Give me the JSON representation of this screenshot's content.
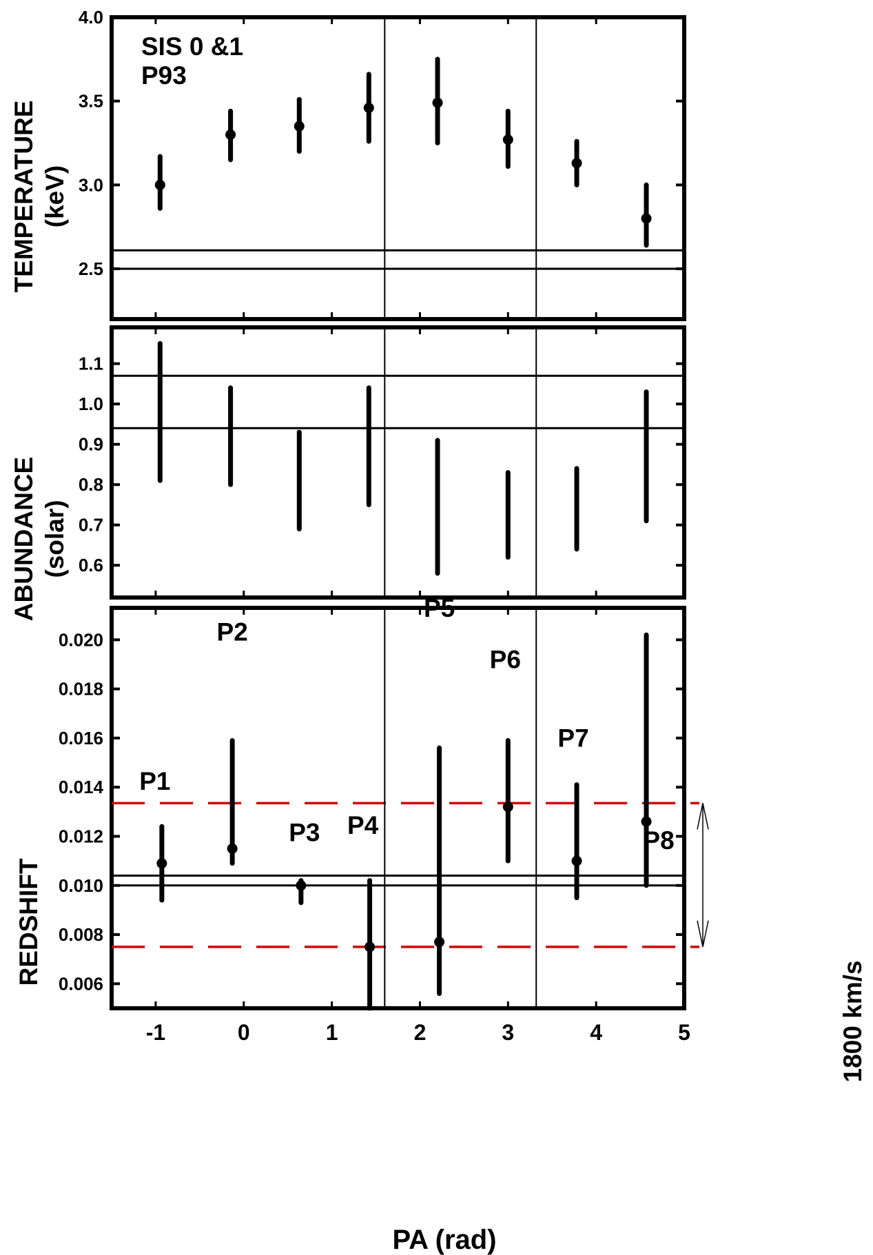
{
  "chart_data": [
    {
      "type": "scatter",
      "panel": "temperature",
      "ylabel": [
        "TEMPERATURE",
        "(keV)"
      ],
      "annotation": [
        "SIS 0 &1",
        "P93"
      ],
      "ylim": [
        2.2,
        4.0
      ],
      "yticks": [
        2.5,
        3.0,
        3.5,
        4.0
      ],
      "ytick_labels": [
        "2.5",
        "3.0",
        "3.5",
        "4.0"
      ],
      "show_points": true,
      "points": [
        {
          "x": -0.95,
          "y": 3.0,
          "ylo": 2.86,
          "yhi": 3.17
        },
        {
          "x": -0.15,
          "y": 3.3,
          "ylo": 3.15,
          "yhi": 3.44
        },
        {
          "x": 0.63,
          "y": 3.35,
          "ylo": 3.2,
          "yhi": 3.51
        },
        {
          "x": 1.42,
          "y": 3.46,
          "ylo": 3.26,
          "yhi": 3.66
        },
        {
          "x": 2.2,
          "y": 3.49,
          "ylo": 3.25,
          "yhi": 3.75
        },
        {
          "x": 3.0,
          "y": 3.27,
          "ylo": 3.11,
          "yhi": 3.44
        },
        {
          "x": 3.78,
          "y": 3.13,
          "ylo": 3.0,
          "yhi": 3.26
        },
        {
          "x": 4.57,
          "y": 2.8,
          "ylo": 2.64,
          "yhi": 3.0
        }
      ],
      "hlines": [
        2.5,
        2.61
      ]
    },
    {
      "type": "scatter",
      "panel": "abundance",
      "ylabel": [
        "ABUNDANCE",
        "(solar)"
      ],
      "ylim": [
        0.52,
        1.19
      ],
      "yticks": [
        0.6,
        0.7,
        0.8,
        0.9,
        1.0,
        1.1
      ],
      "ytick_labels": [
        "0.6",
        "0.7",
        "0.8",
        "0.9",
        "1.0",
        "1.1"
      ],
      "show_points": false,
      "points": [
        {
          "x": -0.95,
          "y": 0.98,
          "ylo": 0.81,
          "yhi": 1.15
        },
        {
          "x": -0.15,
          "y": 0.91,
          "ylo": 0.8,
          "yhi": 1.04
        },
        {
          "x": 0.63,
          "y": 0.81,
          "ylo": 0.69,
          "yhi": 0.93
        },
        {
          "x": 1.42,
          "y": 0.87,
          "ylo": 0.75,
          "yhi": 1.04
        },
        {
          "x": 2.2,
          "y": 0.75,
          "ylo": 0.58,
          "yhi": 0.91
        },
        {
          "x": 3.0,
          "y": 0.71,
          "ylo": 0.62,
          "yhi": 0.83
        },
        {
          "x": 3.78,
          "y": 0.74,
          "ylo": 0.64,
          "yhi": 0.84
        },
        {
          "x": 4.57,
          "y": 0.85,
          "ylo": 0.71,
          "yhi": 1.03
        }
      ],
      "hlines": [
        0.94,
        1.07
      ]
    },
    {
      "type": "scatter",
      "panel": "redshift",
      "ylabel": [
        "REDSHIFT"
      ],
      "xlabel": "PA (rad)",
      "ylim": [
        0.005,
        0.0213
      ],
      "xlim": [
        -1.5,
        5.0
      ],
      "xticks": [
        -1,
        0,
        1,
        2,
        3,
        4,
        5
      ],
      "xtick_labels": [
        "-1",
        "0",
        "1",
        "2",
        "3",
        "4",
        "5"
      ],
      "yticks": [
        0.006,
        0.008,
        0.01,
        0.012,
        0.014,
        0.016,
        0.018,
        0.02
      ],
      "ytick_labels": [
        "0.006",
        "0.008",
        "0.010",
        "0.012",
        "0.014",
        "0.016",
        "0.018",
        "0.020"
      ],
      "show_points": true,
      "points": [
        {
          "x": -0.93,
          "y": 0.0109,
          "ylo": 0.0094,
          "yhi": 0.0124,
          "label": "P1"
        },
        {
          "x": -0.13,
          "y": 0.0115,
          "ylo": 0.0109,
          "yhi": 0.0159,
          "label": "P2"
        },
        {
          "x": 0.65,
          "y": 0.01,
          "ylo": 0.0093,
          "yhi": 0.0102,
          "label": "P3"
        },
        {
          "x": 1.43,
          "y": 0.0075,
          "ylo": 0.005,
          "yhi": 0.0102,
          "label": "P4"
        },
        {
          "x": 2.22,
          "y": 0.0077,
          "ylo": 0.0056,
          "yhi": 0.0156,
          "label": "P5"
        },
        {
          "x": 3.0,
          "y": 0.0132,
          "ylo": 0.011,
          "yhi": 0.0159,
          "label": "P6"
        },
        {
          "x": 3.78,
          "y": 0.011,
          "ylo": 0.0095,
          "yhi": 0.0141,
          "label": "P7"
        },
        {
          "x": 4.57,
          "y": 0.0126,
          "ylo": 0.01,
          "yhi": 0.0202,
          "label": "P8"
        }
      ],
      "hlines": [
        0.01,
        0.0104
      ],
      "dashed_hlines": [
        0.0075,
        0.01335
      ],
      "dashed_color": "#d40000",
      "arrow_label": "1800 km/s"
    }
  ],
  "vlines_x": [
    1.6,
    3.32
  ],
  "colors": {
    "axes": "#000000",
    "dashed": "#d40000"
  }
}
